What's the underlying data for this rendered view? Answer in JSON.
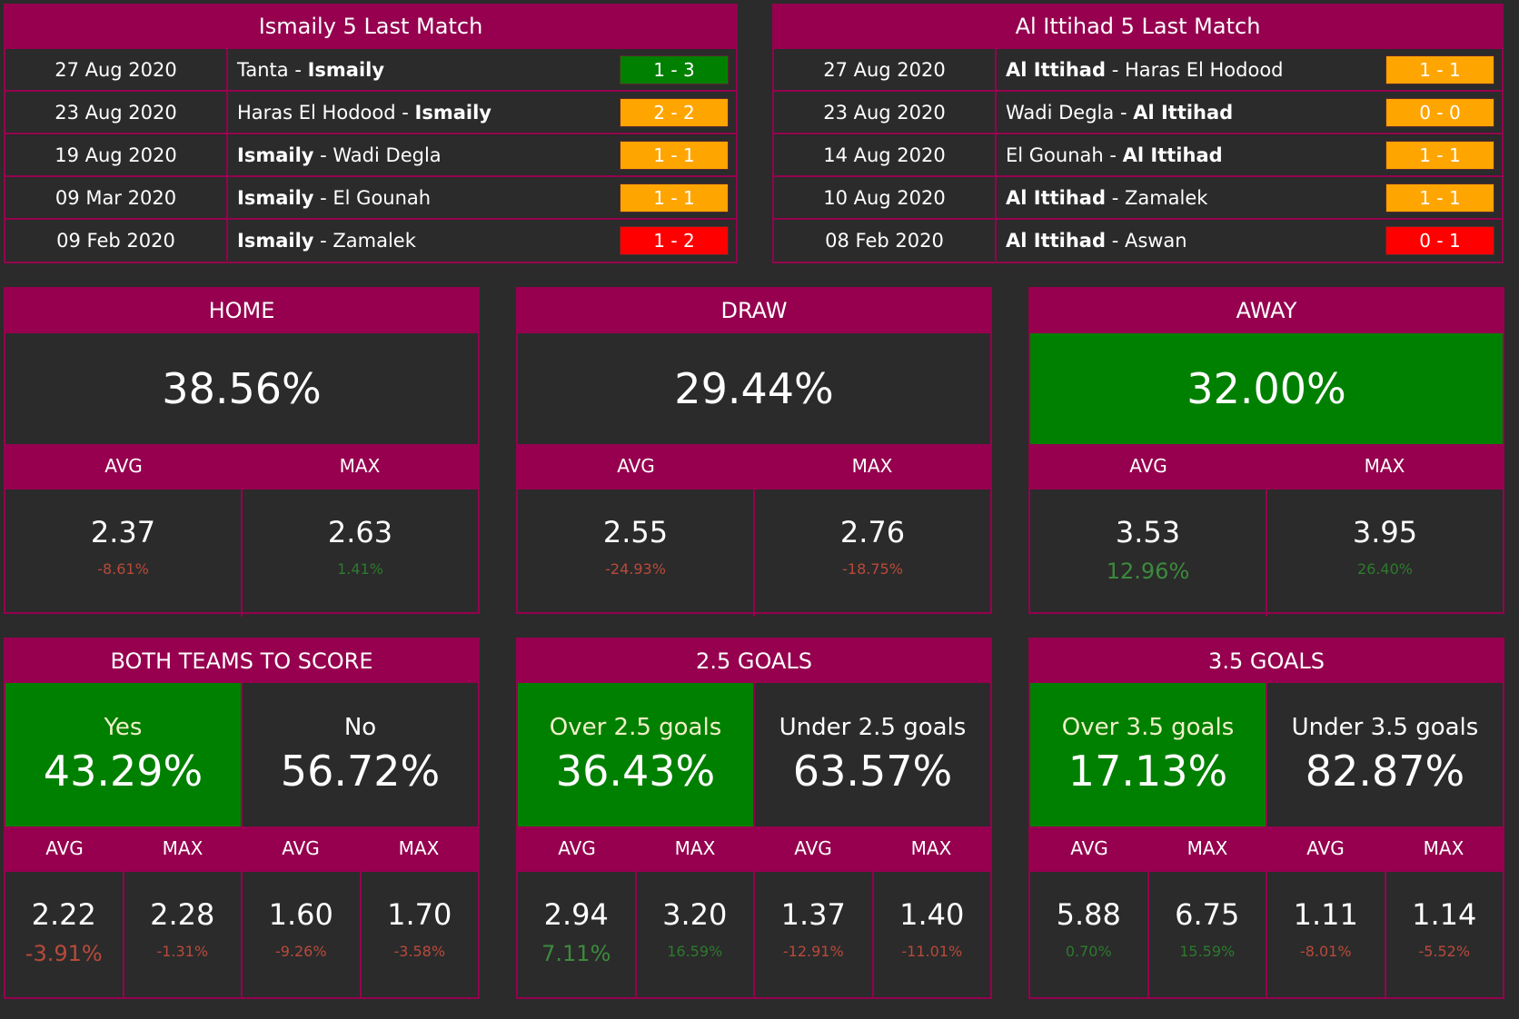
{
  "colors": {
    "accent": "#96004f",
    "win": "#008000",
    "draw": "#ffa500",
    "loss": "#ff0000",
    "bg": "#2b2b2b"
  },
  "last_home": {
    "title": "Ismaily 5 Last Match",
    "rows": [
      {
        "date": "27 Aug 2020",
        "home": "Tanta",
        "away": "Ismaily",
        "bold": "away",
        "score": "1 - 3",
        "result": "win"
      },
      {
        "date": "23 Aug 2020",
        "home": "Haras El Hodood",
        "away": "Ismaily",
        "bold": "away",
        "score": "2 - 2",
        "result": "draw"
      },
      {
        "date": "19 Aug 2020",
        "home": "Ismaily",
        "away": "Wadi Degla",
        "bold": "home",
        "score": "1 - 1",
        "result": "draw"
      },
      {
        "date": "09 Mar 2020",
        "home": "Ismaily",
        "away": "El Gounah",
        "bold": "home",
        "score": "1 - 1",
        "result": "draw"
      },
      {
        "date": "09 Feb 2020",
        "home": "Ismaily",
        "away": "Zamalek",
        "bold": "home",
        "score": "1 - 2",
        "result": "loss"
      }
    ]
  },
  "last_away": {
    "title": "Al Ittihad 5 Last Match",
    "rows": [
      {
        "date": "27 Aug 2020",
        "home": "Al Ittihad",
        "away": "Haras El Hodood",
        "bold": "home",
        "score": "1 - 1",
        "result": "draw"
      },
      {
        "date": "23 Aug 2020",
        "home": "Wadi Degla",
        "away": "Al Ittihad",
        "bold": "away",
        "score": "0 - 0",
        "result": "draw"
      },
      {
        "date": "14 Aug 2020",
        "home": "El Gounah",
        "away": "Al Ittihad",
        "bold": "away",
        "score": "1 - 1",
        "result": "draw"
      },
      {
        "date": "10 Aug 2020",
        "home": "Al Ittihad",
        "away": "Zamalek",
        "bold": "home",
        "score": "1 - 1",
        "result": "draw"
      },
      {
        "date": "08 Feb 2020",
        "home": "Al Ittihad",
        "away": "Aswan",
        "bold": "home",
        "score": "0 - 1",
        "result": "loss"
      }
    ]
  },
  "markets_1x2": [
    {
      "title": "HOME",
      "prob": "38.56%",
      "highlight": false,
      "avg_label": "AVG",
      "max_label": "MAX",
      "avg": "2.37",
      "avg_pct": "-8.61%",
      "avg_sign": "neg",
      "avg_big": false,
      "max": "2.63",
      "max_pct": "1.41%",
      "max_sign": "pos"
    },
    {
      "title": "DRAW",
      "prob": "29.44%",
      "highlight": false,
      "avg_label": "AVG",
      "max_label": "MAX",
      "avg": "2.55",
      "avg_pct": "-24.93%",
      "avg_sign": "neg",
      "avg_big": false,
      "max": "2.76",
      "max_pct": "-18.75%",
      "max_sign": "neg"
    },
    {
      "title": "AWAY",
      "prob": "32.00%",
      "highlight": true,
      "avg_label": "AVG",
      "max_label": "MAX",
      "avg": "3.53",
      "avg_pct": "12.96%",
      "avg_sign": "pos",
      "avg_big": true,
      "max": "3.95",
      "max_pct": "26.40%",
      "max_sign": "pos"
    }
  ],
  "markets_2way": [
    {
      "title": "BOTH TEAMS TO SCORE",
      "options": [
        {
          "label": "Yes",
          "prob": "43.29%",
          "highlight": true
        },
        {
          "label": "No",
          "prob": "56.72%",
          "highlight": false
        }
      ],
      "labels": [
        "AVG",
        "MAX",
        "AVG",
        "MAX"
      ],
      "cells": [
        {
          "odd": "2.22",
          "pct": "-3.91%",
          "sign": "neg",
          "big": true
        },
        {
          "odd": "2.28",
          "pct": "-1.31%",
          "sign": "neg",
          "big": false
        },
        {
          "odd": "1.60",
          "pct": "-9.26%",
          "sign": "neg",
          "big": false
        },
        {
          "odd": "1.70",
          "pct": "-3.58%",
          "sign": "neg",
          "big": false
        }
      ]
    },
    {
      "title": "2.5 GOALS",
      "options": [
        {
          "label": "Over 2.5 goals",
          "prob": "36.43%",
          "highlight": true
        },
        {
          "label": "Under 2.5 goals",
          "prob": "63.57%",
          "highlight": false
        }
      ],
      "labels": [
        "AVG",
        "MAX",
        "AVG",
        "MAX"
      ],
      "cells": [
        {
          "odd": "2.94",
          "pct": "7.11%",
          "sign": "pos",
          "big": true
        },
        {
          "odd": "3.20",
          "pct": "16.59%",
          "sign": "pos",
          "big": false
        },
        {
          "odd": "1.37",
          "pct": "-12.91%",
          "sign": "neg",
          "big": false
        },
        {
          "odd": "1.40",
          "pct": "-11.01%",
          "sign": "neg",
          "big": false
        }
      ]
    },
    {
      "title": "3.5 GOALS",
      "options": [
        {
          "label": "Over 3.5 goals",
          "prob": "17.13%",
          "highlight": true
        },
        {
          "label": "Under 3.5 goals",
          "prob": "82.87%",
          "highlight": false
        }
      ],
      "labels": [
        "AVG",
        "MAX",
        "AVG",
        "MAX"
      ],
      "cells": [
        {
          "odd": "5.88",
          "pct": "0.70%",
          "sign": "pos",
          "big": false
        },
        {
          "odd": "6.75",
          "pct": "15.59%",
          "sign": "pos",
          "big": false
        },
        {
          "odd": "1.11",
          "pct": "-8.01%",
          "sign": "neg",
          "big": false
        },
        {
          "odd": "1.14",
          "pct": "-5.52%",
          "sign": "neg",
          "big": false
        }
      ]
    }
  ]
}
